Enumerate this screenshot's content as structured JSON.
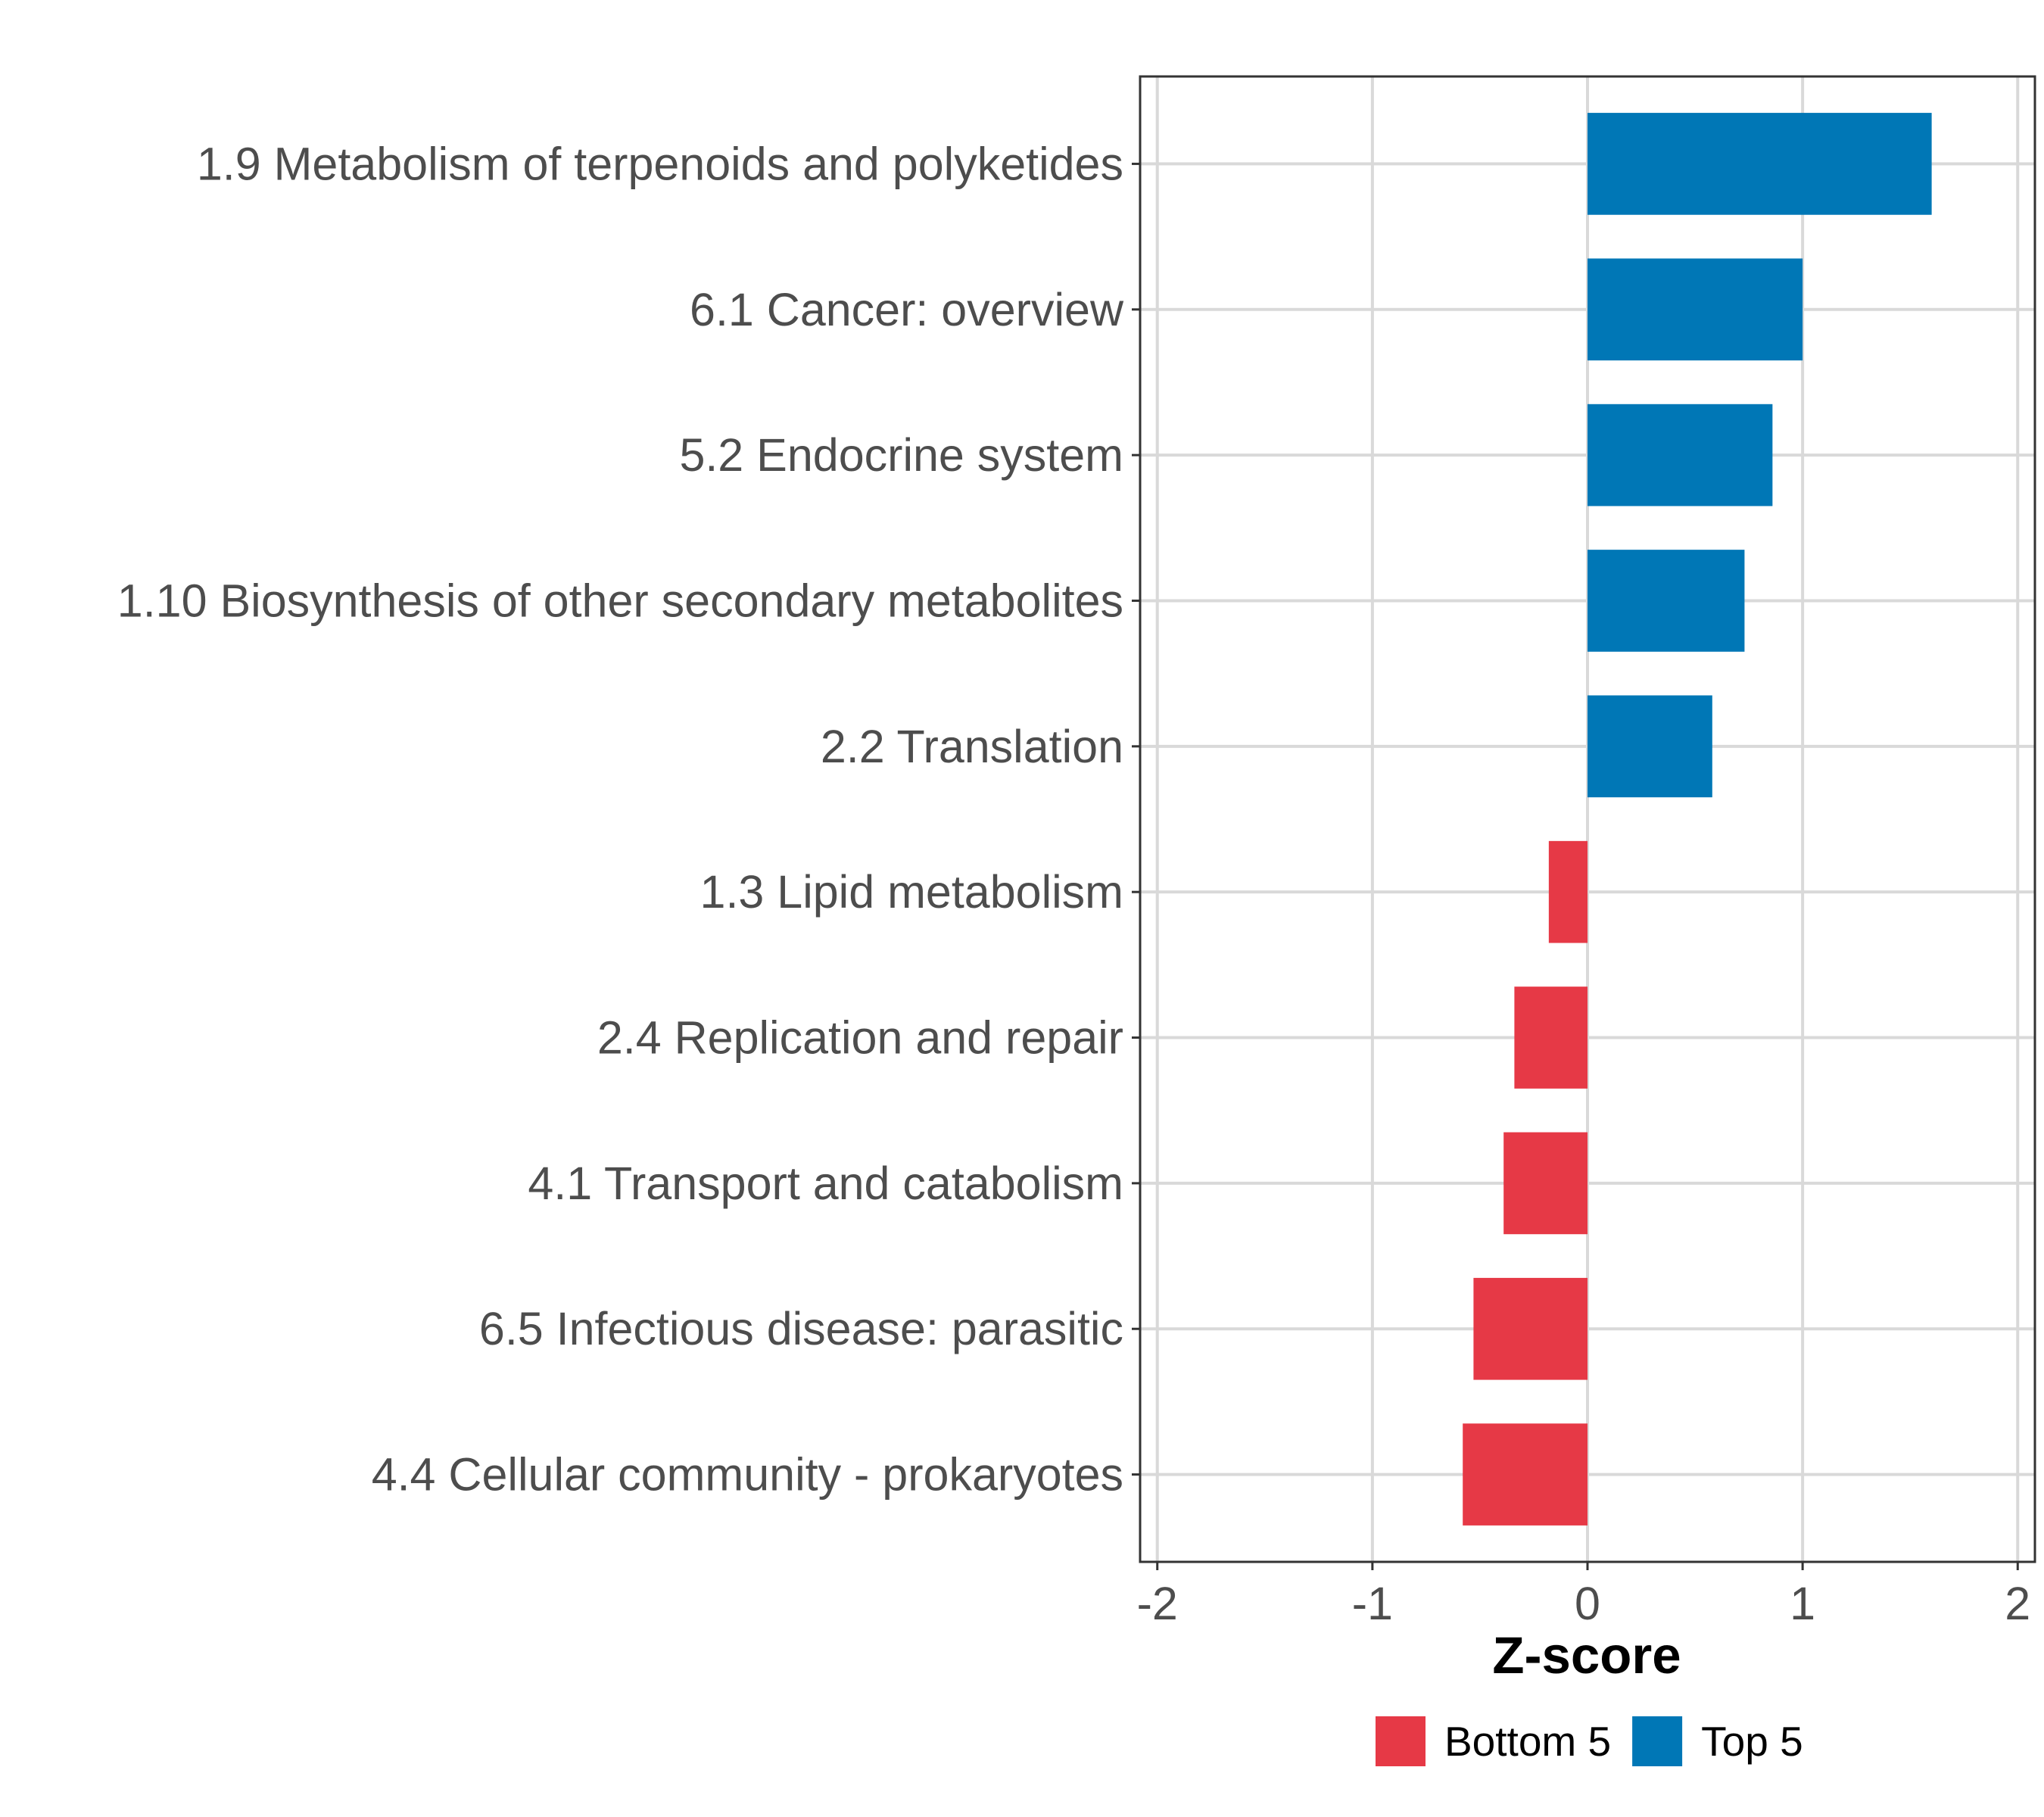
{
  "chart_data": {
    "type": "bar",
    "orientation": "horizontal",
    "title": "",
    "xlabel": "Z-score",
    "ylabel": "",
    "xlim": [
      -2.08,
      2.08
    ],
    "xticks": [
      -2,
      -1,
      0,
      1,
      2
    ],
    "xtick_labels": [
      "-2",
      "-1",
      "0",
      "1",
      "2"
    ],
    "grid": true,
    "legend_position": "bottom",
    "categories": [
      "1.9 Metabolism of terpenoids and polyketides",
      "6.1 Cancer: overview",
      "5.2 Endocrine system",
      "1.10 Biosynthesis of other secondary metabolites",
      "2.2 Translation",
      "1.3 Lipid metabolism",
      "2.4 Replication and repair",
      "4.1 Transport and catabolism",
      "6.5 Infectious disease: parasitic",
      "4.4 Cellular community - prokaryotes"
    ],
    "values": [
      1.6,
      1.0,
      0.86,
      0.73,
      0.58,
      -0.18,
      -0.34,
      -0.39,
      -0.53,
      -0.58
    ],
    "groups": [
      "Top 5",
      "Top 5",
      "Top 5",
      "Top 5",
      "Top 5",
      "Bottom 5",
      "Bottom 5",
      "Bottom 5",
      "Bottom 5",
      "Bottom 5"
    ],
    "legend": [
      {
        "name": "Bottom 5",
        "color": "#e63946"
      },
      {
        "name": "Top 5",
        "color": "#0077b6"
      }
    ]
  }
}
